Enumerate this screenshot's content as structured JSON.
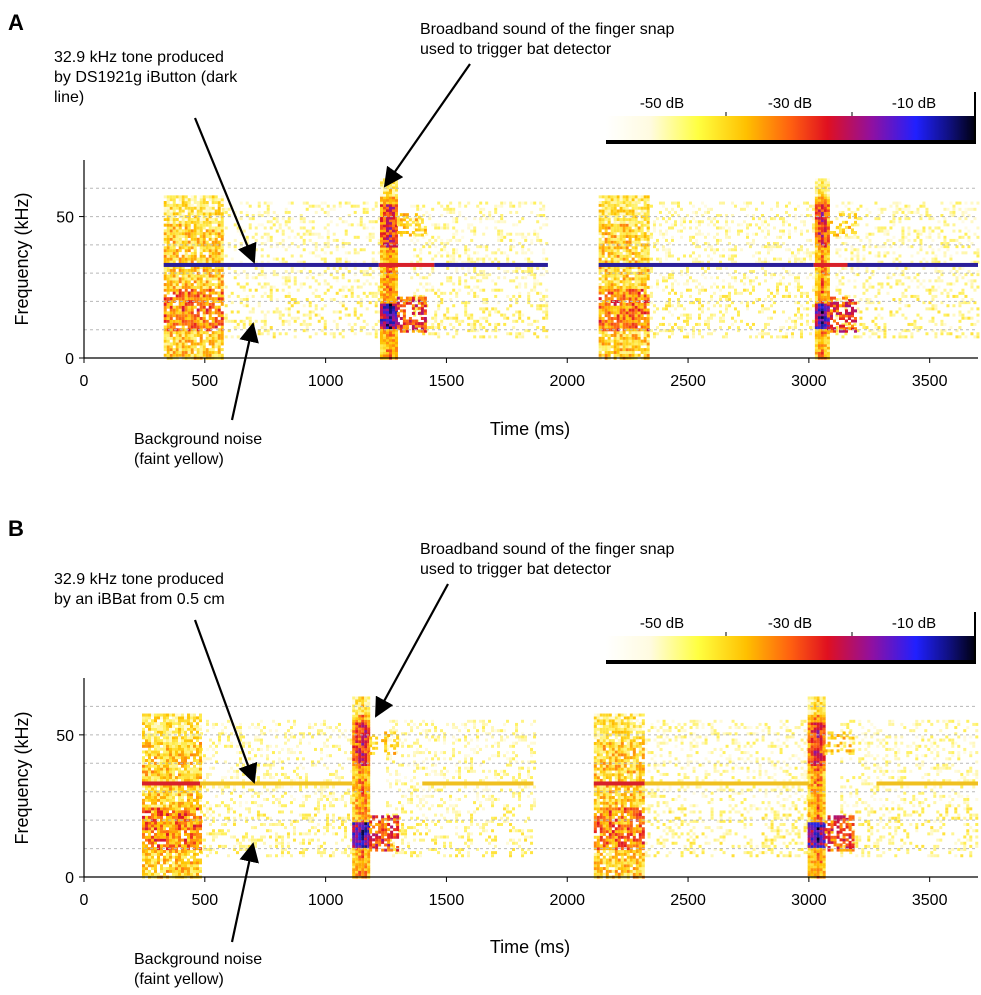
{
  "chart_data": [
    {
      "type": "heatmap",
      "panel": "A",
      "xlabel": "Time (ms)",
      "ylabel": "Frequency (kHz)",
      "xlim": [
        0,
        3700
      ],
      "ylim": [
        0,
        70
      ],
      "xticks": [
        0,
        500,
        1000,
        1500,
        2000,
        2500,
        3000,
        3500
      ],
      "yticks": [
        0,
        50
      ],
      "gridlines_y": [
        10,
        20,
        30,
        40,
        50,
        60
      ],
      "noise_blocks": [
        {
          "t0": 330,
          "t1": 570,
          "intensity": 0.55
        },
        {
          "t0": 2130,
          "t1": 2330,
          "intensity": 0.55
        }
      ],
      "faint_noise": [
        {
          "t0": 570,
          "t1": 1220
        },
        {
          "t0": 1350,
          "t1": 1920
        },
        {
          "t0": 2330,
          "t1": 3020
        },
        {
          "t0": 3110,
          "t1": 3700
        }
      ],
      "snaps": [
        {
          "t": 1260,
          "width": 70
        },
        {
          "t": 3050,
          "width": 50
        }
      ],
      "tone_segments": [
        {
          "t0": 330,
          "t1": 1220,
          "freq": 32.9,
          "level": "strong"
        },
        {
          "t0": 1220,
          "t1": 1450,
          "freq": 32.9,
          "level": "red"
        },
        {
          "t0": 1450,
          "t1": 1920,
          "freq": 32.9,
          "level": "strong"
        },
        {
          "t0": 2130,
          "t1": 3020,
          "freq": 32.9,
          "level": "strong"
        },
        {
          "t0": 3020,
          "t1": 3160,
          "freq": 32.9,
          "level": "red"
        },
        {
          "t0": 3160,
          "t1": 3700,
          "freq": 32.9,
          "level": "strong"
        }
      ],
      "colorbar": {
        "ticks": [
          "-50 dB",
          "-30 dB",
          "-10 dB"
        ]
      },
      "annotations": [
        {
          "id": "tone",
          "lines": [
            "32.9 kHz tone produced",
            "by DS1921g iButton (dark",
            "line)"
          ]
        },
        {
          "id": "snap",
          "lines": [
            "Broadband sound of the finger snap",
            "used to trigger bat detector"
          ]
        },
        {
          "id": "noise",
          "lines": [
            "Background noise",
            "(faint yellow)"
          ]
        }
      ]
    },
    {
      "type": "heatmap",
      "panel": "B",
      "xlabel": "Time (ms)",
      "ylabel": "Frequency (kHz)",
      "xlim": [
        0,
        3700
      ],
      "ylim": [
        0,
        70
      ],
      "xticks": [
        0,
        500,
        1000,
        1500,
        2000,
        2500,
        3000,
        3500
      ],
      "yticks": [
        0,
        50
      ],
      "gridlines_y": [
        10,
        20,
        30,
        40,
        50,
        60
      ],
      "noise_blocks": [
        {
          "t0": 240,
          "t1": 480,
          "intensity": 0.55
        },
        {
          "t0": 2110,
          "t1": 2320,
          "intensity": 0.55
        }
      ],
      "faint_noise": [
        {
          "t0": 480,
          "t1": 1110
        },
        {
          "t0": 1250,
          "t1": 1860
        },
        {
          "t0": 2320,
          "t1": 3000
        },
        {
          "t0": 3130,
          "t1": 3700
        }
      ],
      "snaps": [
        {
          "t": 1145,
          "width": 70
        },
        {
          "t": 3030,
          "width": 70
        }
      ],
      "tone_segments": [
        {
          "t0": 240,
          "t1": 480,
          "freq": 32.9,
          "level": "red"
        },
        {
          "t0": 480,
          "t1": 1110,
          "freq": 32.9,
          "level": "faint"
        },
        {
          "t0": 1400,
          "t1": 1860,
          "freq": 32.9,
          "level": "faint"
        },
        {
          "t0": 2110,
          "t1": 2320,
          "freq": 32.9,
          "level": "red"
        },
        {
          "t0": 2320,
          "t1": 3000,
          "freq": 32.9,
          "level": "faint"
        },
        {
          "t0": 3280,
          "t1": 3700,
          "freq": 32.9,
          "level": "faint"
        }
      ],
      "colorbar": {
        "ticks": [
          "-50 dB",
          "-30 dB",
          "-10 dB"
        ]
      },
      "annotations": [
        {
          "id": "tone",
          "lines": [
            "32.9 kHz tone produced",
            "by an iBBat from 0.5 cm"
          ]
        },
        {
          "id": "snap",
          "lines": [
            "Broadband sound of the finger snap",
            "used to trigger bat detector"
          ]
        },
        {
          "id": "noise",
          "lines": [
            "Background noise",
            "(faint yellow)"
          ]
        }
      ]
    }
  ]
}
